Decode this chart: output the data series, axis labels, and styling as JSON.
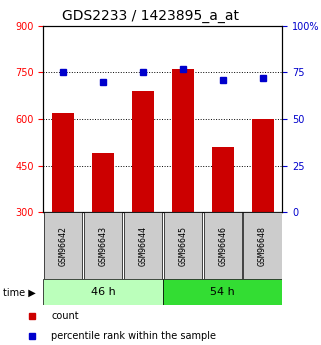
{
  "title": "GDS2233 / 1423895_a_at",
  "samples": [
    "GSM96642",
    "GSM96643",
    "GSM96644",
    "GSM96645",
    "GSM96646",
    "GSM96648"
  ],
  "counts": [
    620,
    490,
    690,
    760,
    510,
    600
  ],
  "percentiles": [
    75,
    70,
    75,
    77,
    71,
    72
  ],
  "left_ylim": [
    300,
    900
  ],
  "right_ylim": [
    0,
    100
  ],
  "left_yticks": [
    300,
    450,
    600,
    750,
    900
  ],
  "right_yticks": [
    0,
    25,
    50,
    75,
    100
  ],
  "right_yticklabels": [
    "0",
    "25",
    "50",
    "75",
    "100%"
  ],
  "hlines": [
    450,
    600,
    750
  ],
  "bar_color": "#cc0000",
  "dot_color": "#0000cc",
  "group_labels": [
    "46 h",
    "54 h"
  ],
  "group_ranges": [
    [
      0,
      3
    ],
    [
      3,
      6
    ]
  ],
  "group_light_color": "#bbffbb",
  "group_dark_color": "#33dd33",
  "legend_count": "count",
  "legend_percentile": "percentile rank within the sample",
  "title_fontsize": 10,
  "tick_label_fontsize": 7,
  "bar_width": 0.55,
  "sample_label_fontsize": 6,
  "group_label_fontsize": 8,
  "time_fontsize": 7
}
